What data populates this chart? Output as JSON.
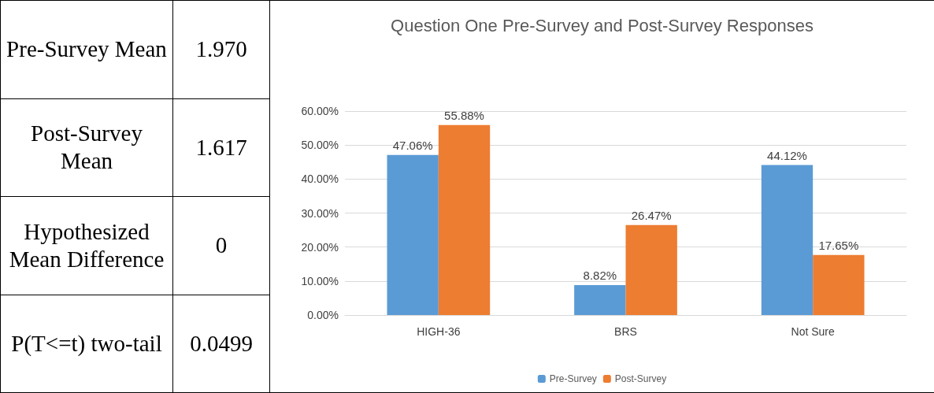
{
  "chart_data": [
    {
      "type": "other",
      "annotations": [
        "Pre-Survey Mean",
        "1.970",
        "Post-Survey Mean",
        "1.617",
        "Hypothesized Mean Difference",
        "0",
        "P(T<=t) two-tail",
        "0.0499"
      ]
    },
    {
      "type": "bar",
      "title": "Question One Pre-Survey and Post-Survey Responses",
      "categories": [
        "HIGH-36",
        "BRS",
        "Not Sure"
      ],
      "series": [
        {
          "name": "Pre-Survey",
          "color": "#5b9bd5",
          "values": [
            47.06,
            8.82,
            44.12
          ],
          "value_labels": [
            "47.06%",
            "8.82%",
            "44.12%"
          ]
        },
        {
          "name": "Post-Survey",
          "color": "#ed7d31",
          "values": [
            55.88,
            26.47,
            17.65
          ],
          "value_labels": [
            "55.88%",
            "26.47%",
            "17.65%"
          ]
        }
      ],
      "ylim": [
        0,
        60
      ],
      "yticks": [
        {
          "value": 0,
          "label": "0.00%"
        },
        {
          "value": 10,
          "label": "10.00%"
        },
        {
          "value": 20,
          "label": "20.00%"
        },
        {
          "value": 30,
          "label": "30.00%"
        },
        {
          "value": 40,
          "label": "40.00%"
        },
        {
          "value": 50,
          "label": "50.00%"
        },
        {
          "value": 60,
          "label": "60.00%"
        }
      ],
      "grid": "y",
      "legend": "bottom"
    }
  ]
}
